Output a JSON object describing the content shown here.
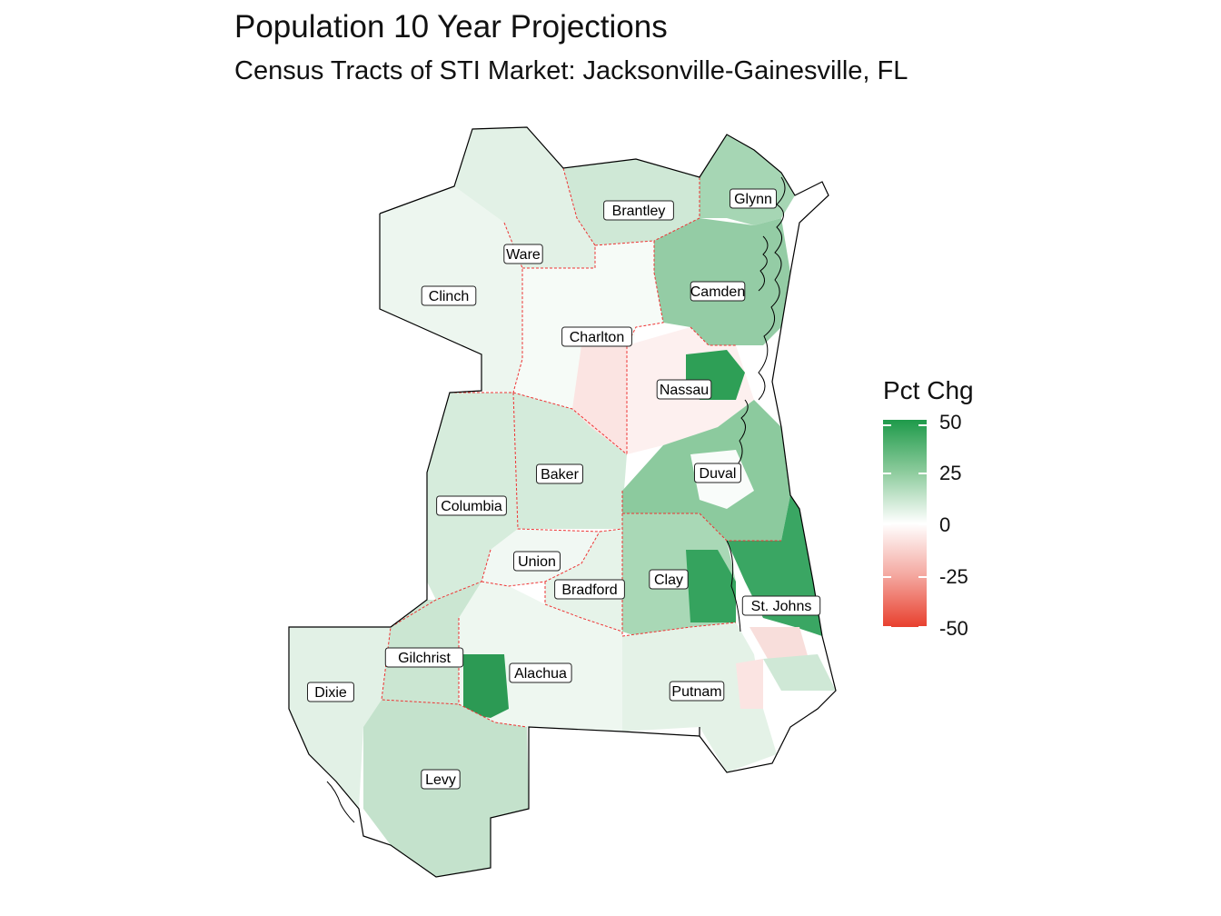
{
  "title": "Population 10 Year Projections",
  "subtitle": "Census Tracts of STI Market: Jacksonville-Gainesville, FL",
  "legend": {
    "title": "Pct Chg",
    "ticks": [
      "50",
      "25",
      "0",
      "-25",
      "-50"
    ],
    "colors": {
      "high": "#1e9a4a",
      "mid": "#ffffff",
      "low": "#e8402e"
    }
  },
  "counties": [
    {
      "id": "glynn",
      "label": "Glynn"
    },
    {
      "id": "brantley",
      "label": "Brantley"
    },
    {
      "id": "ware",
      "label": "Ware"
    },
    {
      "id": "camden",
      "label": "Camden"
    },
    {
      "id": "clinch",
      "label": "Clinch"
    },
    {
      "id": "charlton",
      "label": "Charlton"
    },
    {
      "id": "nassau",
      "label": "Nassau"
    },
    {
      "id": "baker",
      "label": "Baker"
    },
    {
      "id": "duval",
      "label": "Duval"
    },
    {
      "id": "columbia",
      "label": "Columbia"
    },
    {
      "id": "union",
      "label": "Union"
    },
    {
      "id": "clay",
      "label": "Clay"
    },
    {
      "id": "bradford",
      "label": "Bradford"
    },
    {
      "id": "stjohns",
      "label": "St. Johns"
    },
    {
      "id": "gilchrist",
      "label": "Gilchrist"
    },
    {
      "id": "alachua",
      "label": "Alachua"
    },
    {
      "id": "dixie",
      "label": "Dixie"
    },
    {
      "id": "putnam",
      "label": "Putnam"
    },
    {
      "id": "levy",
      "label": "Levy"
    }
  ]
}
